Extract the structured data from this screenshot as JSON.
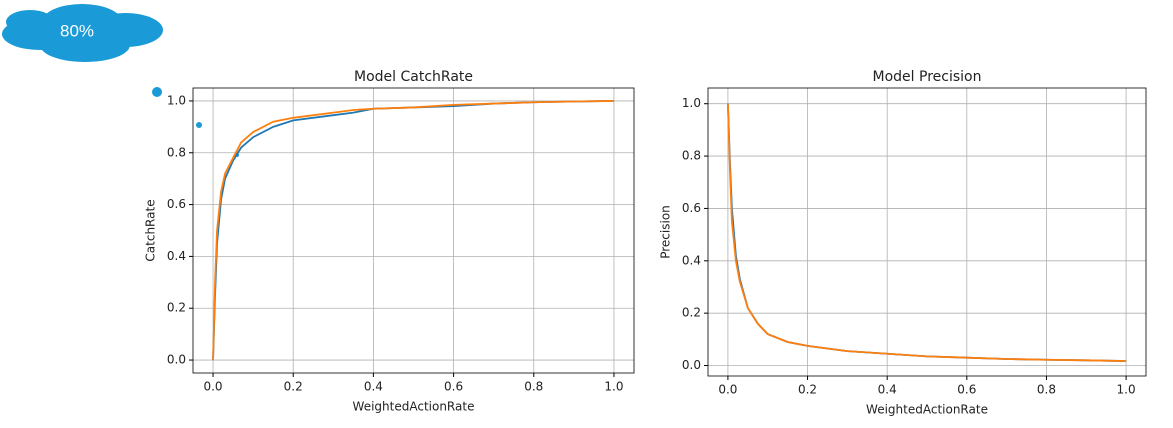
{
  "callout": "80%",
  "chart_data": [
    {
      "type": "line",
      "title": "Model CatchRate",
      "xlabel": "WeightedActionRate",
      "ylabel": "CatchRate",
      "x": [
        0,
        0.005,
        0.01,
        0.02,
        0.03,
        0.05,
        0.07,
        0.1,
        0.15,
        0.2,
        0.3,
        0.35,
        0.4,
        0.5,
        0.6,
        0.7,
        0.8,
        0.9,
        1.0
      ],
      "series": [
        {
          "color": "#1f77b4",
          "values": [
            0,
            0.25,
            0.45,
            0.62,
            0.7,
            0.77,
            0.82,
            0.86,
            0.9,
            0.925,
            0.945,
            0.955,
            0.97,
            0.975,
            0.98,
            0.99,
            0.995,
            0.998,
            1.0
          ]
        },
        {
          "color": "#ff7f0e",
          "values": [
            0,
            0.3,
            0.5,
            0.65,
            0.72,
            0.78,
            0.84,
            0.88,
            0.92,
            0.935,
            0.955,
            0.965,
            0.97,
            0.975,
            0.985,
            0.99,
            0.995,
            0.998,
            1.0
          ]
        }
      ],
      "xlim": [
        -0.05,
        1.05
      ],
      "ylim": [
        -0.05,
        1.05
      ],
      "xticks": [
        {
          "value": 0,
          "label": "0.0"
        },
        0.2,
        0.4,
        0.6,
        0.8,
        {
          "value": 1,
          "label": "1.0"
        }
      ],
      "yticks": [
        {
          "value": 0,
          "label": "0.0"
        },
        0.2,
        0.4,
        0.6,
        0.8,
        {
          "value": 1,
          "label": "1.0"
        }
      ],
      "grid": true
    },
    {
      "type": "line",
      "title": "Model Precision",
      "xlabel": "WeightedActionRate",
      "ylabel": "Precision",
      "x": [
        0,
        0.005,
        0.01,
        0.02,
        0.03,
        0.05,
        0.075,
        0.1,
        0.15,
        0.2,
        0.3,
        0.4,
        0.5,
        0.6,
        0.7,
        0.8,
        0.9,
        1.0
      ],
      "series": [
        {
          "color": "#1f77b4",
          "values": [
            1.0,
            0.78,
            0.6,
            0.42,
            0.33,
            0.22,
            0.16,
            0.12,
            0.09,
            0.075,
            0.055,
            0.045,
            0.035,
            0.03,
            0.025,
            0.022,
            0.02,
            0.017
          ]
        },
        {
          "color": "#ff7f0e",
          "values": [
            1.0,
            0.75,
            0.55,
            0.4,
            0.32,
            0.22,
            0.16,
            0.12,
            0.09,
            0.075,
            0.055,
            0.045,
            0.035,
            0.03,
            0.025,
            0.022,
            0.02,
            0.017
          ]
        }
      ],
      "xlim": [
        -0.05,
        1.05
      ],
      "ylim": [
        -0.04,
        1.06
      ],
      "xticks": [
        {
          "value": 0,
          "label": "0.0"
        },
        0.2,
        0.4,
        0.6,
        0.8,
        {
          "value": 1,
          "label": "1.0"
        }
      ],
      "yticks": [
        {
          "value": 0,
          "label": "0.0"
        },
        0.2,
        0.4,
        0.6,
        0.8,
        {
          "value": 1,
          "label": "1.0"
        }
      ],
      "grid": true
    }
  ]
}
